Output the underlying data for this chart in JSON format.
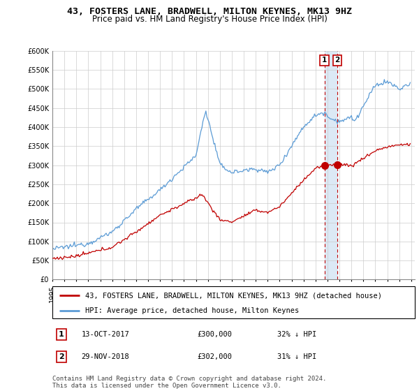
{
  "title": "43, FOSTERS LANE, BRADWELL, MILTON KEYNES, MK13 9HZ",
  "subtitle": "Price paid vs. HM Land Registry's House Price Index (HPI)",
  "ylim": [
    0,
    600000
  ],
  "yticks": [
    0,
    50000,
    100000,
    150000,
    200000,
    250000,
    300000,
    350000,
    400000,
    450000,
    500000,
    550000,
    600000
  ],
  "hpi_color": "#5b9bd5",
  "price_color": "#c00000",
  "vline_color": "#c00000",
  "shading_color": "#dce9f5",
  "legend1_label": "43, FOSTERS LANE, BRADWELL, MILTON KEYNES, MK13 9HZ (detached house)",
  "legend2_label": "HPI: Average price, detached house, Milton Keynes",
  "annotation1_date": "13-OCT-2017",
  "annotation1_price": "£300,000",
  "annotation1_hpi": "32% ↓ HPI",
  "annotation2_date": "29-NOV-2018",
  "annotation2_price": "£302,000",
  "annotation2_hpi": "31% ↓ HPI",
  "footer": "Contains HM Land Registry data © Crown copyright and database right 2024.\nThis data is licensed under the Open Government Licence v3.0.",
  "background_color": "#ffffff",
  "grid_color": "#cccccc",
  "title_fontsize": 9.5,
  "subtitle_fontsize": 8.5,
  "tick_fontsize": 7,
  "legend_fontsize": 7.5,
  "anno_fontsize": 7.5,
  "footer_fontsize": 6.5
}
